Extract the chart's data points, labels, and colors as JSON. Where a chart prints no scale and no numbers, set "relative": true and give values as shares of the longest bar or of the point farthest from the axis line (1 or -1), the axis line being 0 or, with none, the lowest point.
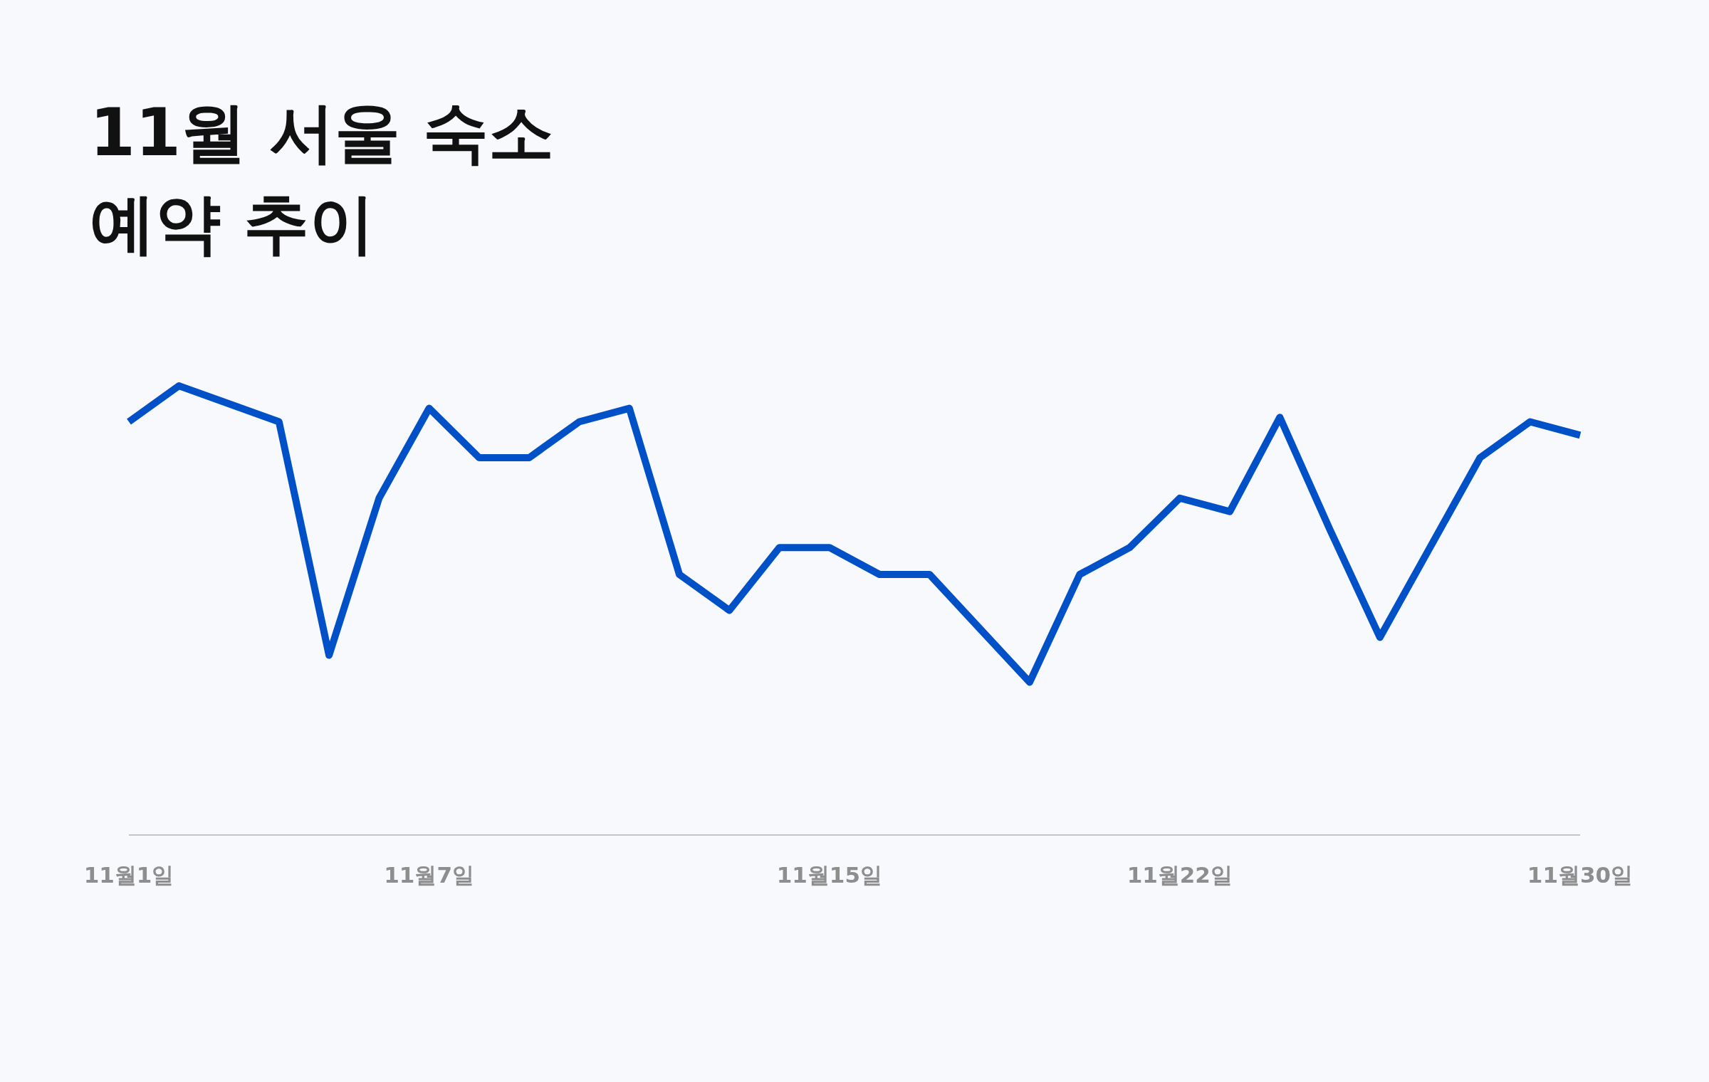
{
  "chart_data": {
    "type": "line",
    "title": "11월 서울 숙소\n예약 추이",
    "categories": [
      "11월1일",
      null,
      null,
      null,
      null,
      null,
      "11월7일",
      null,
      null,
      null,
      null,
      null,
      null,
      null,
      "11월15일",
      null,
      null,
      null,
      null,
      null,
      null,
      "11월22일",
      null,
      null,
      null,
      null,
      null,
      null,
      null,
      "11월30일"
    ],
    "values": [
      0.92,
      1.0,
      0.96,
      0.92,
      0.4,
      0.75,
      0.95,
      0.84,
      0.84,
      0.92,
      0.95,
      0.58,
      0.5,
      0.64,
      0.64,
      0.58,
      0.58,
      0.46,
      0.34,
      0.58,
      0.64,
      0.75,
      0.72,
      0.93,
      0.68,
      0.44,
      0.64,
      0.84,
      0.92,
      0.89
    ],
    "color": "#0050c8",
    "relative": true
  }
}
